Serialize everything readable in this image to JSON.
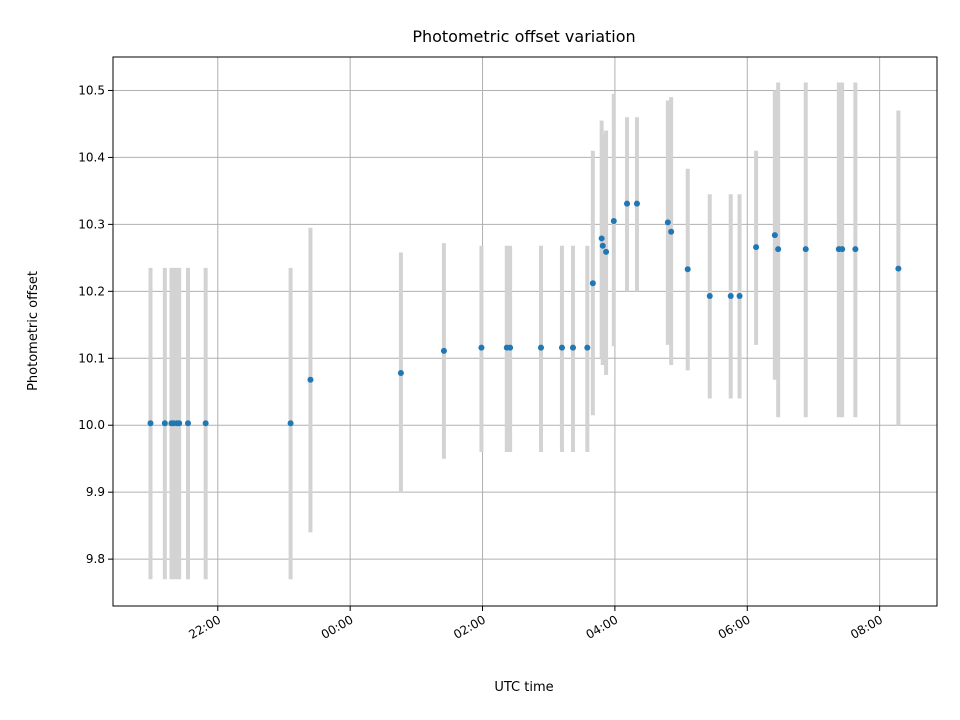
{
  "chart_data": {
    "type": "scatter",
    "title": "Photometric offset variation",
    "xlabel": "UTC time",
    "ylabel": "Photometric offset",
    "x_axis_kind": "time",
    "xlim": [
      "20:25",
      "08:52"
    ],
    "ylim": [
      9.73,
      10.55
    ],
    "x_ticks": [
      "22:00",
      "00:00",
      "02:00",
      "04:00",
      "06:00",
      "08:00"
    ],
    "y_ticks": [
      9.8,
      9.9,
      10.0,
      10.1,
      10.2,
      10.3,
      10.4,
      10.5
    ],
    "grid": true,
    "colors": {
      "points": "#1f77b4",
      "errorbars": "#d3d3d3",
      "grid": "#b0b0b0"
    },
    "points": [
      {
        "x": "20:59",
        "y": 10.003,
        "ylo": 9.77,
        "yhi": 10.235
      },
      {
        "x": "21:12",
        "y": 10.003,
        "ylo": 9.77,
        "yhi": 10.235
      },
      {
        "x": "21:18",
        "y": 10.003,
        "ylo": 9.77,
        "yhi": 10.235
      },
      {
        "x": "21:20",
        "y": 10.003,
        "ylo": 9.77,
        "yhi": 10.235
      },
      {
        "x": "21:23",
        "y": 10.003,
        "ylo": 9.77,
        "yhi": 10.235
      },
      {
        "x": "21:25",
        "y": 10.003,
        "ylo": 9.77,
        "yhi": 10.235
      },
      {
        "x": "21:33",
        "y": 10.003,
        "ylo": 9.77,
        "yhi": 10.235
      },
      {
        "x": "21:49",
        "y": 10.003,
        "ylo": 9.77,
        "yhi": 10.235
      },
      {
        "x": "23:06",
        "y": 10.003,
        "ylo": 9.77,
        "yhi": 10.235
      },
      {
        "x": "23:24",
        "y": 10.068,
        "ylo": 9.84,
        "yhi": 10.295
      },
      {
        "x": "00:46",
        "y": 10.078,
        "ylo": 9.9,
        "yhi": 10.258
      },
      {
        "x": "01:25",
        "y": 10.111,
        "ylo": 9.95,
        "yhi": 10.272
      },
      {
        "x": "01:59",
        "y": 10.116,
        "ylo": 9.96,
        "yhi": 10.268
      },
      {
        "x": "02:22",
        "y": 10.116,
        "ylo": 9.96,
        "yhi": 10.268
      },
      {
        "x": "02:25",
        "y": 10.116,
        "ylo": 9.96,
        "yhi": 10.268
      },
      {
        "x": "02:53",
        "y": 10.116,
        "ylo": 9.96,
        "yhi": 10.268
      },
      {
        "x": "03:12",
        "y": 10.116,
        "ylo": 9.96,
        "yhi": 10.268
      },
      {
        "x": "03:22",
        "y": 10.116,
        "ylo": 9.96,
        "yhi": 10.268
      },
      {
        "x": "03:35",
        "y": 10.116,
        "ylo": 9.96,
        "yhi": 10.268
      },
      {
        "x": "03:40",
        "y": 10.212,
        "ylo": 10.015,
        "yhi": 10.41
      },
      {
        "x": "03:48",
        "y": 10.279,
        "ylo": 10.1,
        "yhi": 10.455
      },
      {
        "x": "03:49",
        "y": 10.268,
        "ylo": 10.09,
        "yhi": 10.435
      },
      {
        "x": "03:52",
        "y": 10.259,
        "ylo": 10.075,
        "yhi": 10.44
      },
      {
        "x": "03:59",
        "y": 10.305,
        "ylo": 10.118,
        "yhi": 10.495
      },
      {
        "x": "04:11",
        "y": 10.331,
        "ylo": 10.2,
        "yhi": 10.46
      },
      {
        "x": "04:20",
        "y": 10.331,
        "ylo": 10.2,
        "yhi": 10.46
      },
      {
        "x": "04:48",
        "y": 10.303,
        "ylo": 10.12,
        "yhi": 10.485
      },
      {
        "x": "04:51",
        "y": 10.289,
        "ylo": 10.09,
        "yhi": 10.49
      },
      {
        "x": "05:06",
        "y": 10.233,
        "ylo": 10.082,
        "yhi": 10.383
      },
      {
        "x": "05:26",
        "y": 10.193,
        "ylo": 10.04,
        "yhi": 10.345
      },
      {
        "x": "05:45",
        "y": 10.193,
        "ylo": 10.04,
        "yhi": 10.345
      },
      {
        "x": "05:53",
        "y": 10.193,
        "ylo": 10.04,
        "yhi": 10.345
      },
      {
        "x": "06:08",
        "y": 10.266,
        "ylo": 10.12,
        "yhi": 10.41
      },
      {
        "x": "06:25",
        "y": 10.284,
        "ylo": 10.068,
        "yhi": 10.5
      },
      {
        "x": "06:28",
        "y": 10.263,
        "ylo": 10.012,
        "yhi": 10.512
      },
      {
        "x": "06:53",
        "y": 10.263,
        "ylo": 10.012,
        "yhi": 10.512
      },
      {
        "x": "07:23",
        "y": 10.263,
        "ylo": 10.012,
        "yhi": 10.512
      },
      {
        "x": "07:26",
        "y": 10.263,
        "ylo": 10.012,
        "yhi": 10.512
      },
      {
        "x": "07:38",
        "y": 10.263,
        "ylo": 10.012,
        "yhi": 10.512
      },
      {
        "x": "08:17",
        "y": 10.234,
        "ylo": 10.0,
        "yhi": 10.47
      }
    ]
  }
}
